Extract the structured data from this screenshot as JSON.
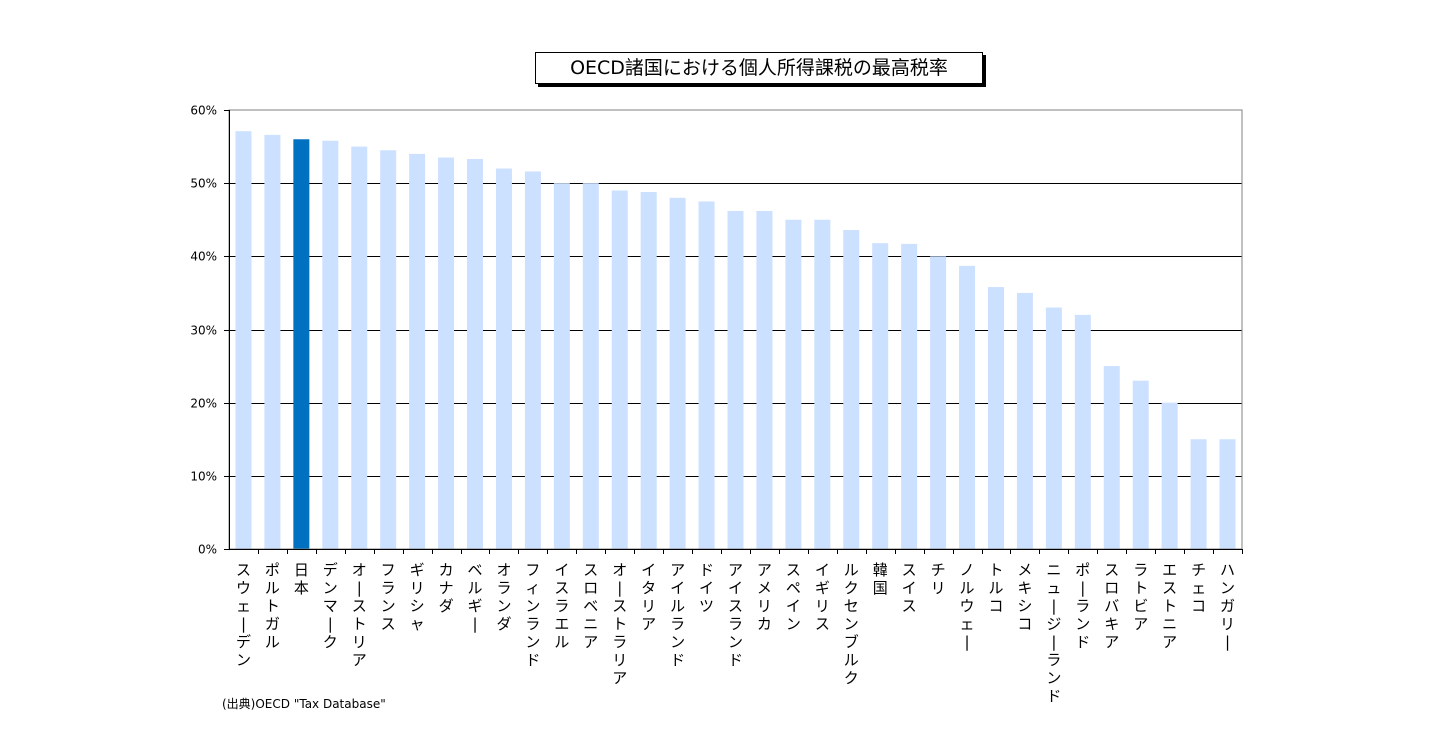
{
  "chart_data": {
    "type": "bar",
    "title": "OECD諸国における個人所得課税の最高税率",
    "xlabel": "",
    "ylabel": "",
    "ylim": [
      0,
      60
    ],
    "y_ticks": [
      "0%",
      "10%",
      "20%",
      "30%",
      "40%",
      "50%",
      "60%"
    ],
    "grid": true,
    "highlight_category": "日本",
    "categories": [
      "スウェーデン",
      "ポルトガル",
      "日本",
      "デンマーク",
      "オーストリア",
      "フランス",
      "ギリシャ",
      "カナダ",
      "ベルギー",
      "オランダ",
      "フィンランド",
      "イスラエル",
      "スロベニア",
      "オーストラリア",
      "イタリア",
      "アイルランド",
      "ドイツ",
      "アイスランド",
      "アメリカ",
      "スペイン",
      "イギリス",
      "ルクセンブルク",
      "韓国",
      "スイス",
      "チリ",
      "ノルウェー",
      "トルコ",
      "メキシコ",
      "ニュージーランド",
      "ポーランド",
      "スロバキア",
      "ラトビア",
      "エストニア",
      "チェコ",
      "ハンガリー"
    ],
    "values": [
      57.1,
      56.6,
      56.0,
      55.8,
      55.0,
      54.5,
      54.0,
      53.5,
      53.3,
      52.0,
      51.6,
      50.0,
      50.0,
      49.0,
      48.8,
      48.0,
      47.5,
      46.2,
      46.2,
      45.0,
      45.0,
      43.6,
      41.8,
      41.7,
      40.0,
      38.7,
      35.8,
      35.0,
      33.0,
      32.0,
      25.0,
      23.0,
      20.0,
      15.0,
      15.0
    ]
  },
  "colors": {
    "bar": "#cce0ff",
    "highlight": "#0070c0",
    "grid": "#000000"
  },
  "source": "(出典)OECD \"Tax Database\""
}
